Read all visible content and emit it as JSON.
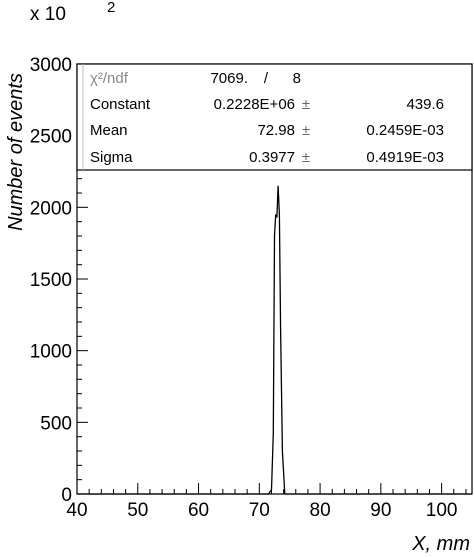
{
  "chart_data": {
    "type": "line",
    "xlabel": "X, mm",
    "ylabel": "Number of events",
    "y_multiplier": "x 10",
    "y_multiplier_exp": "2",
    "xlim": [
      40,
      105
    ],
    "ylim": [
      0,
      3000
    ],
    "x_ticks": [
      40,
      50,
      60,
      70,
      80,
      90,
      100
    ],
    "y_ticks": [
      0,
      500,
      1000,
      1500,
      2000,
      2500,
      3000
    ],
    "x_tick_labels": [
      "40",
      "50",
      "60",
      "70",
      "80",
      "90",
      "100"
    ],
    "y_tick_labels": [
      "0",
      "500",
      "1000",
      "1500",
      "2000",
      "2500",
      "3000"
    ],
    "grid": false,
    "series": [
      {
        "x": [
          40,
          71.5,
          72.0,
          72.3,
          72.5,
          72.7,
          72.9,
          73.1,
          73.3,
          73.5,
          73.8,
          74.2,
          105
        ],
        "y": [
          0,
          0,
          30,
          420,
          1800,
          1950,
          1930,
          2150,
          1950,
          1150,
          300,
          0,
          0
        ]
      }
    ],
    "stats_box": {
      "rows": [
        {
          "label": "χ²/ndf",
          "value": "7069.",
          "sep": "/",
          "error": "8"
        },
        {
          "label": "Constant",
          "value": "0.2228E+06",
          "sep": "±",
          "error": "439.6"
        },
        {
          "label": "Mean",
          "value": "72.98",
          "sep": "±",
          "error": "0.2459E-03"
        },
        {
          "label": "Sigma",
          "value": "0.3977",
          "sep": "±",
          "error": "0.4919E-03"
        }
      ]
    }
  }
}
